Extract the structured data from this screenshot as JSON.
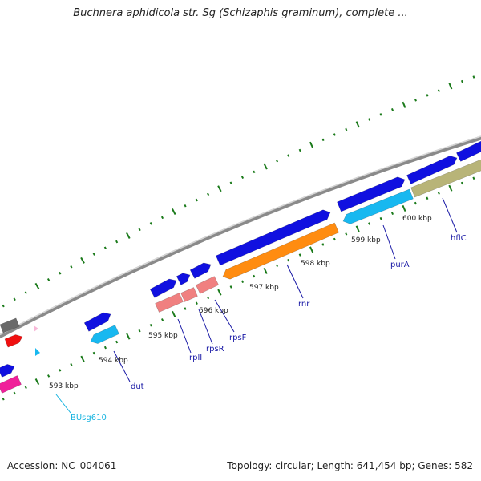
{
  "title": "Buchnera aphidicola str. Sg (Schizaphis graminum), complete ...",
  "footer": {
    "accession": "Accession: NC_004061",
    "summary": "Topology: circular; Length: 641,454 bp; Genes: 582"
  },
  "colors": {
    "backbone": "#8a8a8a",
    "tick": "#1a7a1a",
    "label": "#1a1aa6",
    "label_alt": "#18b4e0",
    "blue": "#1010e0",
    "cyan": "#18b8f0",
    "salmon": "#f08080",
    "orange": "#ff8c10",
    "khaki": "#b8b478",
    "magenta": "#f0209a",
    "pink": "#f8b8d8",
    "red": "#f01010",
    "gray": "#6a6a6a"
  },
  "map": {
    "tick_labels": [
      {
        "kbp": 593,
        "text": "593 kbp"
      },
      {
        "kbp": 594,
        "text": "594 kbp"
      },
      {
        "kbp": 595,
        "text": "595 kbp"
      },
      {
        "kbp": 596,
        "text": "596 kbp"
      },
      {
        "kbp": 597,
        "text": "597 kbp"
      },
      {
        "kbp": 598,
        "text": "598 kbp"
      },
      {
        "kbp": 599,
        "text": "599 kbp"
      },
      {
        "kbp": 600,
        "text": "600 kbp"
      }
    ],
    "gene_labels": [
      {
        "name": "BUsg610",
        "color": "label_alt"
      },
      {
        "name": "dut",
        "color": "label"
      },
      {
        "name": "rplI",
        "color": "label"
      },
      {
        "name": "rpsR",
        "color": "label"
      },
      {
        "name": "rpsF",
        "color": "label"
      },
      {
        "name": "rnr",
        "color": "label"
      },
      {
        "name": "purA",
        "color": "label"
      },
      {
        "name": "hflC",
        "color": "label"
      }
    ]
  }
}
